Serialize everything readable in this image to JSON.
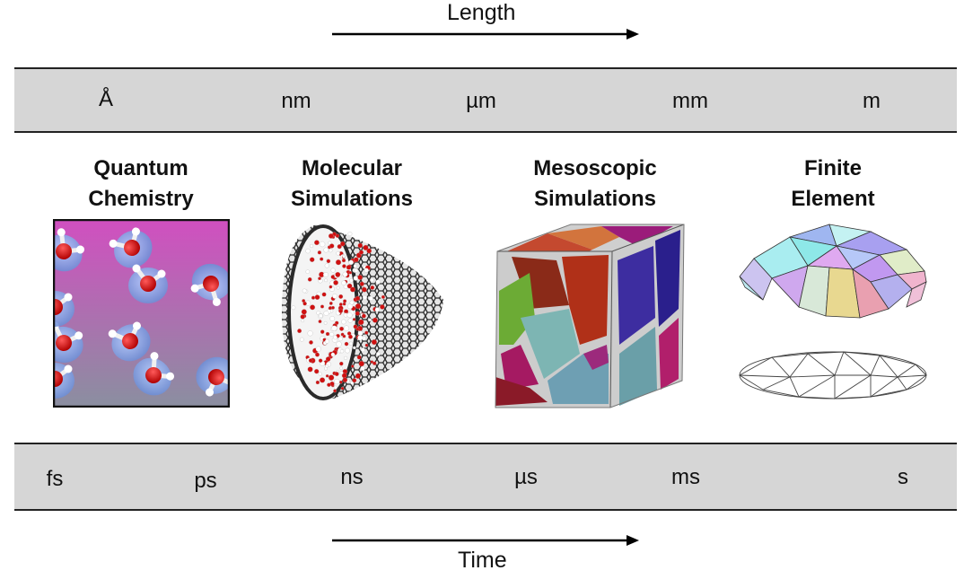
{
  "length_axis": {
    "title": "Length",
    "units": [
      "Å",
      "nm",
      "µm",
      "mm",
      "m"
    ]
  },
  "time_axis": {
    "title": "Time",
    "units": [
      "fs",
      "ps",
      "ns",
      "µs",
      "ms",
      "s"
    ]
  },
  "methods": [
    {
      "line1": "Quantum",
      "line2": "Chemistry",
      "illustration": "water-molecules-electron-density"
    },
    {
      "line1": "Molecular",
      "line2": "Simulations",
      "illustration": "carbon-nanotube-with-water"
    },
    {
      "line1": "Mesoscopic",
      "line2": "Simulations",
      "illustration": "polycrystalline-grain-cube"
    },
    {
      "line1": "Finite",
      "line2": "Element",
      "illustration": "triangulated-dome-mesh"
    }
  ],
  "colors": {
    "band": "#d6d6d6",
    "qc_gradient_top": "#d14fc0",
    "qc_gradient_bottom": "#8a8fa0",
    "oxygen": "#d01010",
    "density": "#7fa4e0",
    "nanotube": "#2a2a2a"
  }
}
